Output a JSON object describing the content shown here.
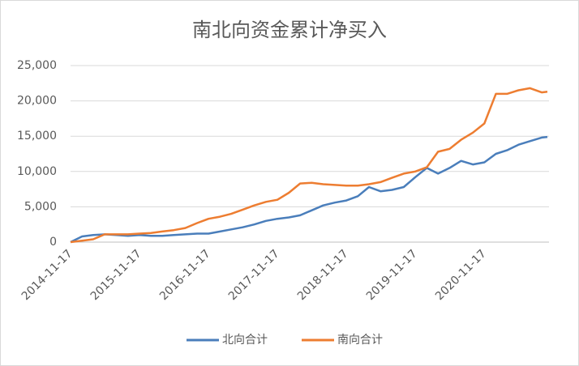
{
  "chart_data": {
    "type": "line",
    "title": "南北向资金累计净买入",
    "x": [
      "2014-11-17",
      "2015-01-17",
      "2015-03-17",
      "2015-05-17",
      "2015-07-17",
      "2015-09-17",
      "2015-11-17",
      "2016-01-17",
      "2016-03-17",
      "2016-05-17",
      "2016-07-17",
      "2016-09-17",
      "2016-11-17",
      "2017-01-17",
      "2017-03-17",
      "2017-05-17",
      "2017-07-17",
      "2017-09-17",
      "2017-11-17",
      "2018-01-17",
      "2018-03-17",
      "2018-05-17",
      "2018-07-17",
      "2018-09-17",
      "2018-11-17",
      "2019-01-17",
      "2019-03-17",
      "2019-05-17",
      "2019-07-17",
      "2019-09-17",
      "2019-11-17",
      "2020-01-17",
      "2020-03-17",
      "2020-05-17",
      "2020-07-17",
      "2020-09-17",
      "2020-11-17",
      "2021-01-17",
      "2021-03-17",
      "2021-05-17",
      "2021-07-17",
      "2021-09-17",
      "2021-10-17"
    ],
    "series": [
      {
        "name": "北向合计",
        "color": "#4a7ebb",
        "values": [
          0,
          800,
          1000,
          1100,
          1000,
          900,
          1000,
          900,
          900,
          1000,
          1100,
          1200,
          1200,
          1500,
          1800,
          2100,
          2500,
          3000,
          3300,
          3500,
          3800,
          4500,
          5200,
          5600,
          5900,
          6500,
          7800,
          7200,
          7400,
          7800,
          9200,
          10500,
          9700,
          10500,
          11500,
          11000,
          11300,
          12500,
          13000,
          13800,
          14300,
          14800,
          14900
        ]
      },
      {
        "name": "南向合计",
        "color": "#ed7d31",
        "values": [
          0,
          200,
          400,
          1100,
          1100,
          1100,
          1200,
          1300,
          1500,
          1700,
          2000,
          2700,
          3300,
          3600,
          4000,
          4600,
          5200,
          5700,
          6000,
          7000,
          8300,
          8400,
          8200,
          8100,
          8000,
          8000,
          8200,
          8500,
          9100,
          9700,
          10000,
          10600,
          12800,
          13200,
          14500,
          15500,
          16800,
          21000,
          21000,
          21500,
          21800,
          21200,
          21300
        ]
      }
    ],
    "xlim": [
      "2014-11-17",
      "2021-10-17"
    ],
    "xticks": [
      "2014-11-17",
      "2015-11-17",
      "2016-11-17",
      "2017-11-17",
      "2018-11-17",
      "2019-11-17",
      "2020-11-17"
    ],
    "ylim": [
      0,
      25000
    ],
    "yticks": [
      0,
      {
        "value": 5000,
        "label": "5,000"
      },
      {
        "value": 10000,
        "label": "10,000"
      },
      {
        "value": 15000,
        "label": "15,000"
      },
      {
        "value": 20000,
        "label": "20,000"
      },
      {
        "value": 25000,
        "label": "25,000"
      }
    ],
    "grid": true,
    "legend": "bottom"
  }
}
